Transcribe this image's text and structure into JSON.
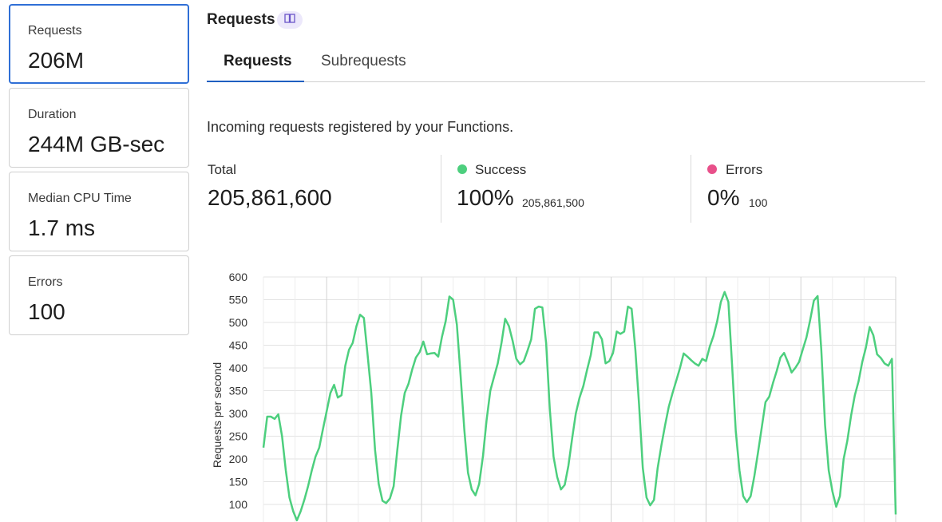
{
  "metrics": [
    {
      "label": "Requests",
      "value": "206M"
    },
    {
      "label": "Duration",
      "value": "244M GB-sec"
    },
    {
      "label": "Median CPU Time",
      "value": "1.7 ms"
    },
    {
      "label": "Errors",
      "value": "100"
    }
  ],
  "header": {
    "title": "Requests",
    "docs_icon": "book-icon"
  },
  "tabs": [
    {
      "label": "Requests",
      "active": true
    },
    {
      "label": "Subrequests",
      "active": false
    }
  ],
  "description": "Incoming requests registered by your Functions.",
  "stats": {
    "total": {
      "label": "Total",
      "value": "205,861,600"
    },
    "success": {
      "label": "Success",
      "percent": "100%",
      "count": "205,861,500",
      "color": "#4dcf7e"
    },
    "errors": {
      "label": "Errors",
      "percent": "0%",
      "count": "100",
      "color": "#e8508a"
    }
  },
  "colors": {
    "accent": "#2f6fd6",
    "line": "#4dcf7e"
  },
  "chart_data": {
    "type": "line",
    "ylabel": "Requests per second",
    "yticks": [
      "100",
      "150",
      "200",
      "250",
      "300",
      "350",
      "400",
      "450",
      "500",
      "550",
      "600"
    ],
    "ylim": [
      100,
      600
    ],
    "grid": true,
    "series": [
      {
        "values": [
          225,
          293,
          293,
          288,
          298,
          250,
          175,
          115,
          85,
          65,
          85,
          110,
          140,
          175,
          205,
          225,
          265,
          305,
          345,
          363,
          335,
          340,
          405,
          440,
          455,
          492,
          517,
          510,
          430,
          345,
          220,
          145,
          108,
          103,
          113,
          140,
          220,
          295,
          345,
          365,
          397,
          423,
          435,
          458,
          430,
          432,
          433,
          425,
          468,
          503,
          557,
          550,
          495,
          385,
          265,
          170,
          133,
          120,
          145,
          205,
          285,
          350,
          380,
          410,
          455,
          508,
          492,
          460,
          420,
          408,
          415,
          438,
          463,
          530,
          535,
          533,
          455,
          310,
          205,
          160,
          133,
          143,
          185,
          245,
          300,
          335,
          360,
          395,
          428,
          478,
          478,
          463,
          410,
          415,
          433,
          480,
          475,
          480,
          535,
          530,
          440,
          320,
          180,
          115,
          98,
          110,
          180,
          230,
          275,
          315,
          345,
          372,
          400,
          432,
          425,
          417,
          410,
          405,
          420,
          415,
          447,
          470,
          503,
          545,
          567,
          545,
          408,
          260,
          175,
          118,
          105,
          118,
          163,
          215,
          270,
          325,
          337,
          367,
          393,
          423,
          433,
          413,
          390,
          400,
          413,
          440,
          467,
          505,
          548,
          558,
          440,
          275,
          175,
          128,
          95,
          118,
          200,
          240,
          295,
          340,
          370,
          413,
          445,
          490,
          472,
          430,
          422,
          410,
          405,
          420,
          78
        ]
      }
    ]
  }
}
